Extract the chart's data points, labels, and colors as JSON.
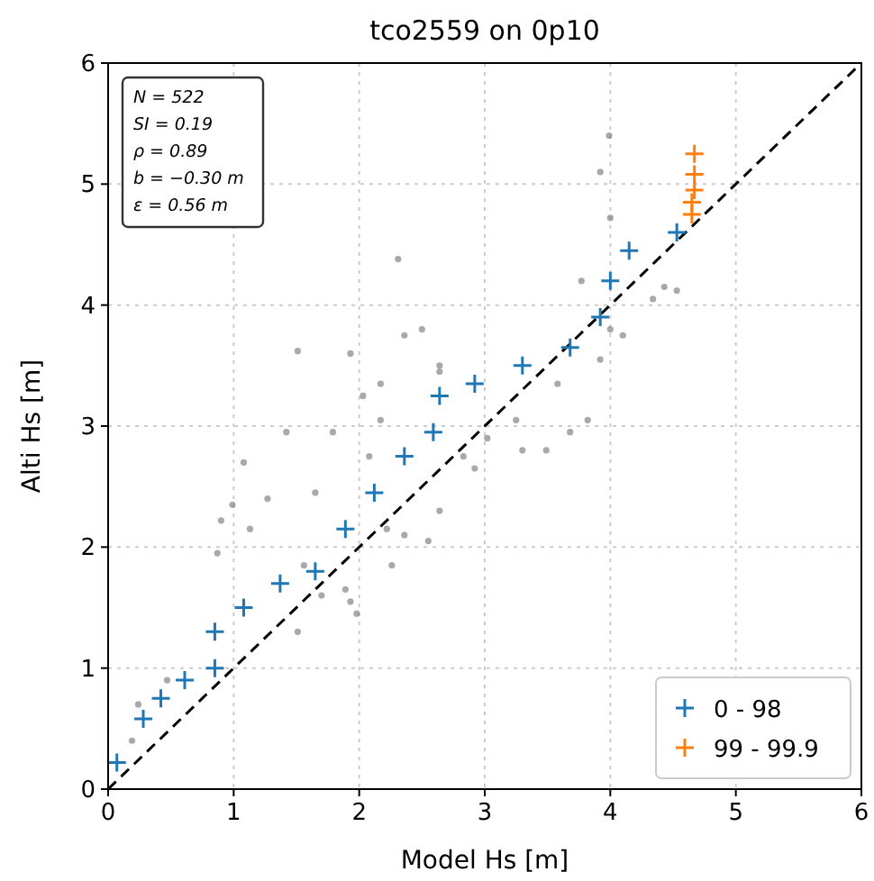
{
  "chart_data": {
    "type": "scatter",
    "title": "tco2559 on 0p10",
    "xlabel": "Model Hs [m]",
    "ylabel": "Alti Hs [m]",
    "xlim": [
      0,
      6
    ],
    "ylim": [
      0,
      6
    ],
    "xticks": [
      0,
      1,
      2,
      3,
      4,
      5,
      6
    ],
    "yticks": [
      0,
      1,
      2,
      3,
      4,
      5,
      6
    ],
    "grid": true,
    "legend": "bottom right",
    "annotations": [
      "N = 522",
      "SI = 0.19",
      "ρ = 0.89",
      "b = −0.30 m",
      "ε = 0.56 m"
    ],
    "series": [
      {
        "color": "#707070",
        "marker": "circle",
        "x": [
          3.99,
          3.92,
          2.31,
          4.0,
          4.43,
          4.53,
          1.51,
          1.93,
          2.36,
          2.5,
          2.64,
          2.17,
          1.79,
          1.42,
          1.08,
          0.9,
          0.87,
          0.99,
          1.56,
          1.51,
          1.89,
          1.93,
          2.22,
          2.36,
          2.55,
          2.64,
          2.92,
          3.3,
          3.49,
          3.68,
          3.82,
          3.92,
          4.0,
          4.1,
          4.34,
          3.77,
          2.17,
          2.64,
          0.19,
          0.24,
          0.47,
          1.13,
          1.27,
          2.08,
          2.83,
          3.02,
          2.03,
          3.25,
          3.58,
          1.65,
          2.26,
          1.98,
          1.7
        ],
        "values": [
          5.4,
          5.1,
          4.38,
          4.72,
          4.15,
          4.12,
          3.62,
          3.6,
          3.75,
          3.8,
          3.45,
          3.05,
          2.95,
          2.95,
          2.7,
          2.22,
          1.95,
          2.35,
          1.85,
          1.3,
          1.65,
          1.55,
          2.15,
          2.1,
          2.05,
          2.3,
          2.65,
          2.8,
          2.8,
          2.95,
          3.05,
          3.55,
          3.8,
          3.75,
          4.05,
          4.2,
          3.35,
          3.5,
          0.4,
          0.7,
          0.9,
          2.15,
          2.4,
          2.75,
          2.75,
          2.9,
          3.25,
          3.05,
          3.35,
          2.45,
          1.85,
          1.45,
          1.6
        ]
      },
      {
        "type": "line",
        "color": "#000000",
        "line_style": "dashed",
        "marker": "none",
        "x": [
          0,
          6
        ],
        "values": [
          0,
          6
        ]
      },
      {
        "name": "0 - 98",
        "color": "#1f77b4",
        "marker": "cross",
        "x": [
          0.07,
          0.28,
          0.42,
          0.61,
          0.85,
          0.85,
          1.08,
          1.37,
          1.65,
          1.89,
          2.12,
          2.36,
          2.59,
          2.64,
          2.92,
          3.3,
          3.68,
          3.92,
          4.0,
          4.15,
          4.53
        ],
        "values": [
          0.22,
          0.58,
          0.75,
          0.9,
          1.0,
          1.3,
          1.5,
          1.7,
          1.8,
          2.15,
          2.45,
          2.75,
          2.95,
          3.25,
          3.35,
          3.5,
          3.65,
          3.9,
          4.2,
          4.45,
          4.6
        ]
      },
      {
        "name": "99 - 99.9",
        "color": "#ff7f0e",
        "marker": "cross",
        "x": [
          4.65,
          4.65,
          4.67,
          4.67,
          4.67
        ],
        "values": [
          4.75,
          4.85,
          4.95,
          5.08,
          5.25
        ]
      }
    ]
  }
}
